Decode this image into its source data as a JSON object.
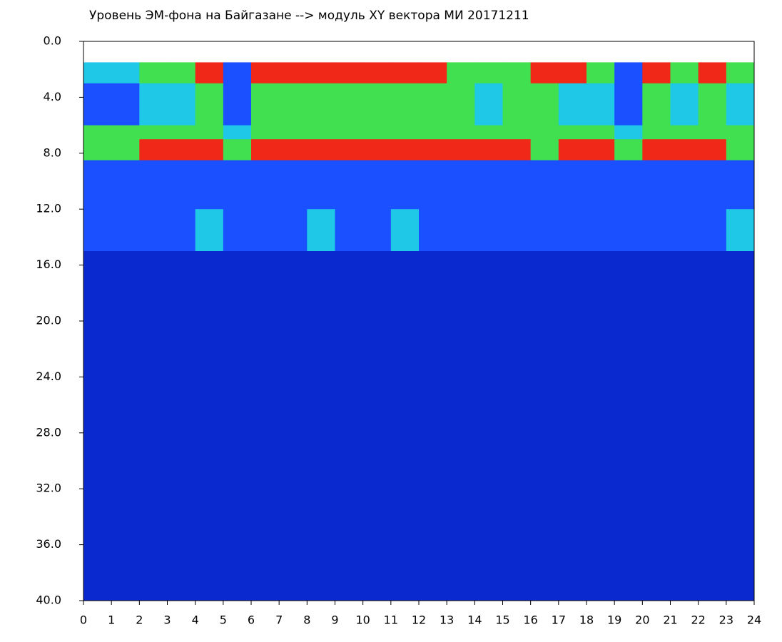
{
  "chart_data": {
    "type": "heatmap",
    "title": "Уровень ЭМ-фона на Байгазане   -->  модуль XY вектора МИ   20171211",
    "xlim": [
      0,
      24
    ],
    "xticks": [
      0,
      1,
      2,
      3,
      4,
      5,
      6,
      7,
      8,
      9,
      10,
      11,
      12,
      13,
      14,
      15,
      16,
      17,
      18,
      19,
      20,
      21,
      22,
      23,
      24
    ],
    "ylim": [
      0,
      40
    ],
    "yticks": [
      {
        "value": 0,
        "label": "0.0"
      },
      {
        "value": 4,
        "label": "4.0"
      },
      {
        "value": 8,
        "label": "8.0"
      },
      {
        "value": 12,
        "label": "12.0"
      },
      {
        "value": 16,
        "label": "16.0"
      },
      {
        "value": 20,
        "label": "20.0"
      },
      {
        "value": 24,
        "label": "24.0"
      },
      {
        "value": 28,
        "label": "28.0"
      },
      {
        "value": 32,
        "label": "32.0"
      },
      {
        "value": 36,
        "label": "36.0"
      },
      {
        "value": 40,
        "label": "40.0"
      }
    ],
    "y_inverted": true,
    "ybins": [
      1.5,
      3,
      6,
      7,
      8.5,
      12,
      15,
      40
    ],
    "colors": [
      "#0a2ad0",
      "#1a50ff",
      "#20c8e8",
      "#40e050",
      "#f02818"
    ],
    "values": [
      [
        2,
        2,
        3,
        3,
        4,
        1,
        4,
        4,
        4,
        4,
        4,
        4,
        4,
        3,
        3,
        3,
        4,
        4,
        3,
        1,
        4,
        3,
        4,
        3
      ],
      [
        1,
        1,
        2,
        2,
        3,
        1,
        3,
        3,
        3,
        3,
        3,
        3,
        3,
        3,
        2,
        3,
        3,
        2,
        2,
        1,
        3,
        2,
        3,
        2
      ],
      [
        3,
        3,
        3,
        3,
        3,
        2,
        3,
        3,
        3,
        3,
        3,
        3,
        3,
        3,
        3,
        3,
        3,
        3,
        3,
        2,
        3,
        3,
        3,
        3
      ],
      [
        3,
        3,
        4,
        4,
        4,
        3,
        4,
        4,
        4,
        4,
        4,
        4,
        4,
        4,
        4,
        4,
        3,
        4,
        4,
        3,
        4,
        4,
        4,
        3
      ],
      [
        1,
        1,
        1,
        1,
        1,
        1,
        1,
        1,
        1,
        1,
        1,
        1,
        1,
        1,
        1,
        1,
        1,
        1,
        1,
        1,
        1,
        1,
        1,
        1
      ],
      [
        1,
        1,
        1,
        1,
        2,
        1,
        1,
        1,
        2,
        1,
        1,
        2,
        1,
        1,
        1,
        1,
        1,
        1,
        1,
        1,
        1,
        1,
        1,
        2
      ],
      [
        0,
        0,
        0,
        0,
        0,
        0,
        0,
        0,
        0,
        0,
        0,
        0,
        0,
        0,
        0,
        0,
        0,
        0,
        0,
        0,
        0,
        0,
        0,
        0
      ]
    ]
  }
}
